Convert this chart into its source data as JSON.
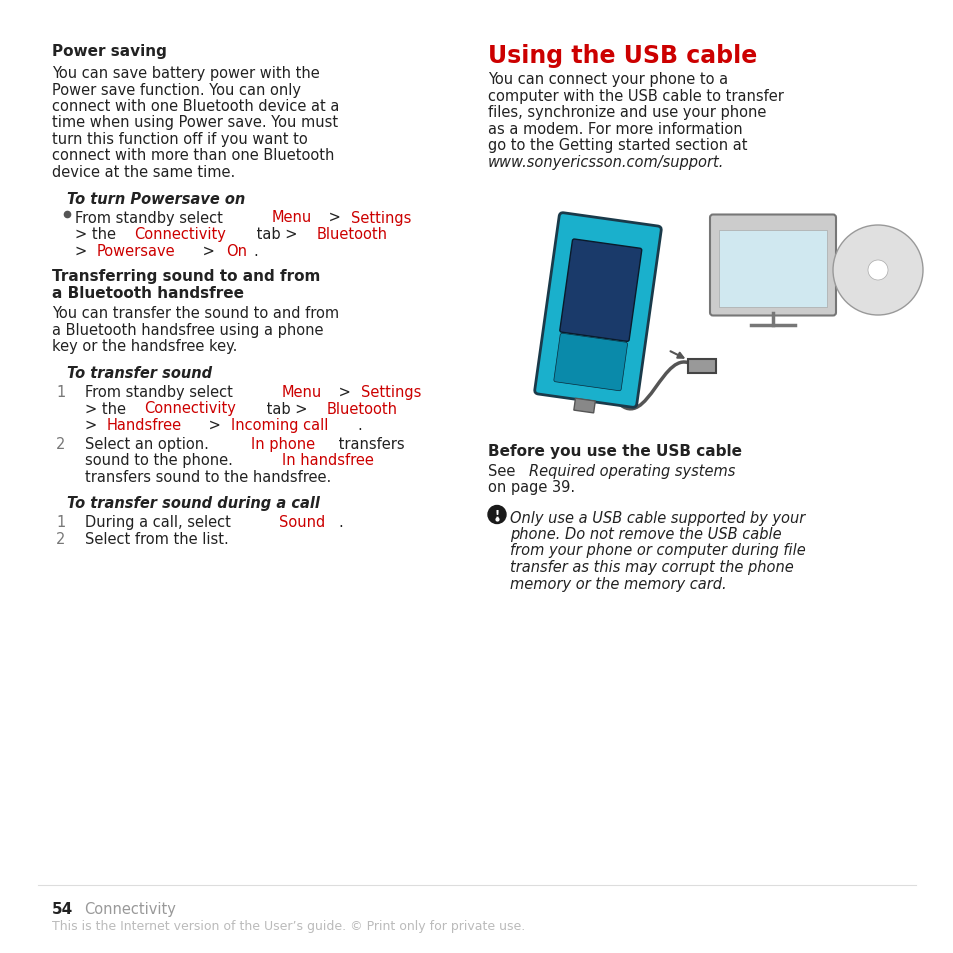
{
  "bg_color": "#ffffff",
  "red_color": "#cc0000",
  "black_color": "#222222",
  "gray_color": "#999999",
  "light_gray": "#bbbbbb",
  "page_number": "54",
  "page_section": "Connectivity",
  "footer_text": "This is the Internet version of the User’s guide. © Print only for private use."
}
